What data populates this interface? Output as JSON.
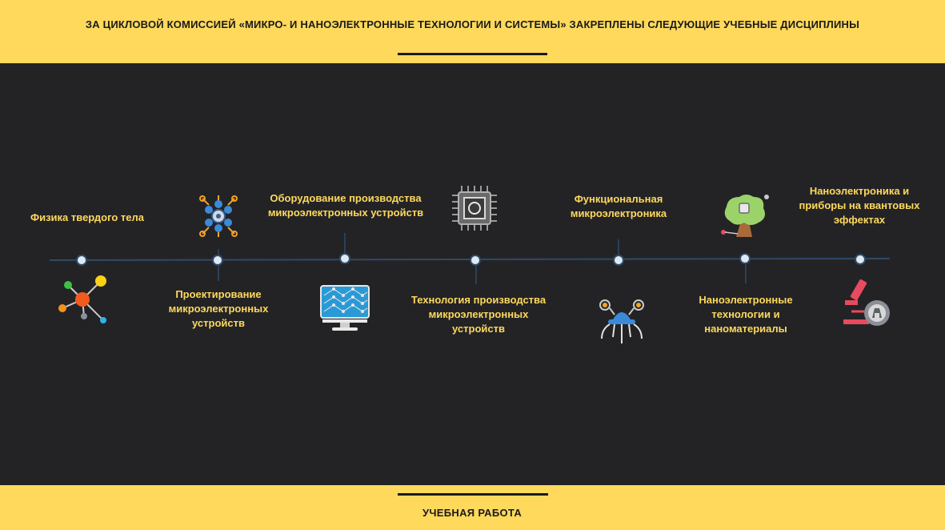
{
  "header": {
    "title": "ЗА ЦИКЛОВОЙ КОМИССИЕЙ «МИКРО- И НАНОЭЛЕКТРОННЫЕ ТЕХНОЛОГИИ И СИСТЕМЫ» ЗАКРЕПЛЕНЫ СЛЕДУЮЩИЕ УЧЕБНЫЕ ДИСЦИПЛИНЫ"
  },
  "timeline": {
    "items": [
      {
        "label": "Физика твердого тела",
        "icon": "molecule-icon"
      },
      {
        "label": "Проектирование микроэлектронных устройств",
        "icon": "atom-network-icon"
      },
      {
        "label": "Оборудование производства микроэлектронных устройств",
        "icon": "monitor-lattice-icon"
      },
      {
        "label": "Технология производства микроэлектронных устройств",
        "icon": "microchip-icon"
      },
      {
        "label": "Функциональная микроэлектроника",
        "icon": "nanorobot-icon"
      },
      {
        "label": "Наноэлектронные технологии и наноматериалы",
        "icon": "chip-tree-icon"
      },
      {
        "label": "Наноэлектроника и приборы на квантовых эффектах",
        "icon": "microscope-icon"
      }
    ]
  },
  "footer": {
    "label": "УЧЕБНАЯ РАБОТА"
  }
}
